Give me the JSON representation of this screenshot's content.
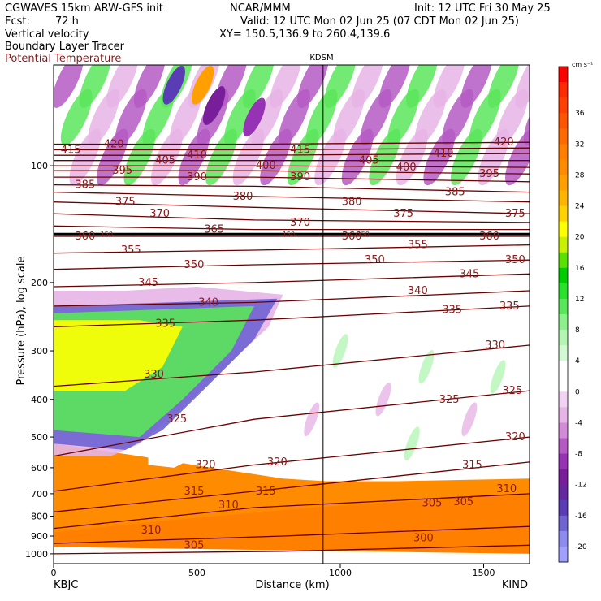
{
  "header": {
    "model": "CGWAVES 15km ARW-GFS init",
    "center": "NCAR/MMM",
    "init": "Init: 12 UTC Fri 30 May 25",
    "fcst_label": "Fcst:",
    "fcst_value": "72 h",
    "valid": "Valid: 12 UTC Mon 02 Jun 25 (07 CDT Mon 02 Jun 25)",
    "fields": [
      "Vertical velocity",
      "Boundary Layer Tracer",
      "Potential Temperature"
    ],
    "xy": "XY= 150.5,136.9 to 260.4,139.6"
  },
  "colors": {
    "theta_contour": "#6b0000",
    "theta_label": "#8b1a1a",
    "tropopause_line": "#000000",
    "pbl_tracer_fill": "#ff8c00"
  },
  "chart_data": {
    "type": "heatmap",
    "title": "",
    "station_marker": "KDSM",
    "station_marker_x_km": 940,
    "xlabel": "Distance (km)",
    "ylabel": "Pressure (hPa), log scale",
    "x_axis": {
      "ticks": [
        0,
        500,
        1000,
        1500
      ],
      "range": [
        0,
        1660
      ]
    },
    "x_end_labels": {
      "left": "KBJC",
      "right": "KIND"
    },
    "y_axis": {
      "scale": "log",
      "ticks": [
        100,
        200,
        300,
        400,
        500,
        600,
        700,
        800,
        900,
        1000
      ]
    },
    "colorbar": {
      "units": "cm s⁻¹",
      "tick_labels": [
        36,
        32,
        28,
        24,
        20,
        16,
        12,
        8,
        4,
        0,
        -4,
        -8,
        -12,
        -16,
        -20
      ],
      "levels": [
        {
          "value": 40,
          "color": "#ff0000"
        },
        {
          "value": 38,
          "color": "#ff2a00"
        },
        {
          "value": 36,
          "color": "#ff4000"
        },
        {
          "value": 34,
          "color": "#ff5500"
        },
        {
          "value": 32,
          "color": "#ff6a00"
        },
        {
          "value": 30,
          "color": "#ff7f00"
        },
        {
          "value": 28,
          "color": "#ff8c00"
        },
        {
          "value": 26,
          "color": "#ffa000"
        },
        {
          "value": 24,
          "color": "#ffb400"
        },
        {
          "value": 22,
          "color": "#ffd200"
        },
        {
          "value": 20,
          "color": "#ffff00"
        },
        {
          "value": 18,
          "color": "#c8f000"
        },
        {
          "value": 16,
          "color": "#5ae100"
        },
        {
          "value": 14,
          "color": "#00cd00"
        },
        {
          "value": 12,
          "color": "#2be02b"
        },
        {
          "value": 10,
          "color": "#5ae65a"
        },
        {
          "value": 8,
          "color": "#8cf08c"
        },
        {
          "value": 6,
          "color": "#b4f5b4"
        },
        {
          "value": 4,
          "color": "#d2fad2"
        },
        {
          "value": 2,
          "color": "#ffffff"
        },
        {
          "value": 0,
          "color": "#ffffff"
        },
        {
          "value": -2,
          "color": "#f2d2f2"
        },
        {
          "value": -4,
          "color": "#e6b4e6"
        },
        {
          "value": -6,
          "color": "#d28cd7"
        },
        {
          "value": -8,
          "color": "#b45ac3"
        },
        {
          "value": -10,
          "color": "#9632b4"
        },
        {
          "value": -12,
          "color": "#781e9b"
        },
        {
          "value": -14,
          "color": "#6428a0"
        },
        {
          "value": -16,
          "color": "#5a3cb4"
        },
        {
          "value": -18,
          "color": "#6e64d2"
        },
        {
          "value": -20,
          "color": "#8c8cf0"
        },
        {
          "value": -22,
          "color": "#a0a0ff"
        }
      ]
    },
    "tropopause_labels": [
      "150",
      "150",
      "150"
    ],
    "theta_contours": [
      {
        "value": 300,
        "points": [
          [
            0,
            1000
          ],
          [
            800,
            985
          ],
          [
            1660,
            950
          ]
        ]
      },
      {
        "value": 305,
        "points": [
          [
            0,
            940
          ],
          [
            800,
            900
          ],
          [
            1660,
            850
          ]
        ]
      },
      {
        "value": 310,
        "points": [
          [
            0,
            860
          ],
          [
            700,
            760
          ],
          [
            1660,
            700
          ]
        ]
      },
      {
        "value": 315,
        "points": [
          [
            0,
            780
          ],
          [
            700,
            690
          ],
          [
            1660,
            580
          ]
        ]
      },
      {
        "value": 320,
        "points": [
          [
            0,
            690
          ],
          [
            700,
            590
          ],
          [
            1660,
            500
          ]
        ]
      },
      {
        "value": 325,
        "points": [
          [
            0,
            560
          ],
          [
            700,
            450
          ],
          [
            1660,
            380
          ]
        ]
      },
      {
        "value": 330,
        "points": [
          [
            0,
            370
          ],
          [
            700,
            340
          ],
          [
            1660,
            290
          ]
        ]
      },
      {
        "value": 335,
        "points": [
          [
            0,
            260
          ],
          [
            700,
            250
          ],
          [
            1660,
            230
          ]
        ]
      },
      {
        "value": 340,
        "points": [
          [
            0,
            230
          ],
          [
            700,
            225
          ],
          [
            1660,
            210
          ]
        ]
      },
      {
        "value": 345,
        "points": [
          [
            0,
            205
          ],
          [
            700,
            200
          ],
          [
            1660,
            190
          ]
        ]
      },
      {
        "value": 350,
        "points": [
          [
            0,
            185
          ],
          [
            700,
            180
          ],
          [
            1660,
            175
          ]
        ]
      },
      {
        "value": 355,
        "points": [
          [
            0,
            168
          ],
          [
            700,
            165
          ],
          [
            1660,
            160
          ]
        ]
      },
      {
        "value": 360,
        "points": [
          [
            0,
            152
          ],
          [
            700,
            152
          ],
          [
            1660,
            152
          ]
        ]
      },
      {
        "value": 365,
        "points": [
          [
            0,
            143
          ],
          [
            700,
            146
          ],
          [
            1660,
            146
          ]
        ]
      },
      {
        "value": 370,
        "points": [
          [
            0,
            133
          ],
          [
            700,
            138
          ],
          [
            1660,
            140
          ]
        ]
      },
      {
        "value": 375,
        "points": [
          [
            0,
            124
          ],
          [
            700,
            128
          ],
          [
            1660,
            133
          ]
        ]
      },
      {
        "value": 380,
        "points": [
          [
            0,
            117
          ],
          [
            700,
            120
          ],
          [
            1660,
            124
          ]
        ]
      },
      {
        "value": 385,
        "points": [
          [
            0,
            112
          ],
          [
            700,
            113
          ],
          [
            1660,
            117
          ]
        ]
      },
      {
        "value": 390,
        "points": [
          [
            0,
            107
          ],
          [
            700,
            107
          ],
          [
            1660,
            110
          ]
        ]
      },
      {
        "value": 395,
        "points": [
          [
            0,
            103
          ],
          [
            700,
            103
          ],
          [
            1660,
            105
          ]
        ]
      },
      {
        "value": 400,
        "points": [
          [
            0,
            100
          ],
          [
            700,
            100
          ],
          [
            1660,
            101
          ]
        ]
      },
      {
        "value": 405,
        "points": [
          [
            0,
            97
          ],
          [
            700,
            97
          ],
          [
            1660,
            97
          ]
        ]
      },
      {
        "value": 410,
        "points": [
          [
            0,
            94
          ],
          [
            700,
            94
          ],
          [
            1660,
            93
          ]
        ]
      },
      {
        "value": 415,
        "points": [
          [
            0,
            91
          ],
          [
            700,
            91
          ],
          [
            1660,
            90
          ]
        ]
      },
      {
        "value": 420,
        "points": [
          [
            0,
            88
          ],
          [
            700,
            88
          ],
          [
            1660,
            87
          ]
        ]
      }
    ],
    "theta_contour_labels": [
      {
        "value": 415,
        "x": 60,
        "p": 91
      },
      {
        "value": 420,
        "x": 210,
        "p": 88
      },
      {
        "value": 405,
        "x": 390,
        "p": 97
      },
      {
        "value": 410,
        "x": 500,
        "p": 94
      },
      {
        "value": 400,
        "x": 740,
        "p": 100
      },
      {
        "value": 415,
        "x": 860,
        "p": 91
      },
      {
        "value": 405,
        "x": 1100,
        "p": 97
      },
      {
        "value": 400,
        "x": 1230,
        "p": 101
      },
      {
        "value": 410,
        "x": 1360,
        "p": 93
      },
      {
        "value": 420,
        "x": 1570,
        "p": 87
      },
      {
        "value": 395,
        "x": 240,
        "p": 103
      },
      {
        "value": 390,
        "x": 500,
        "p": 107
      },
      {
        "value": 390,
        "x": 860,
        "p": 107
      },
      {
        "value": 395,
        "x": 1520,
        "p": 105
      },
      {
        "value": 385,
        "x": 110,
        "p": 112
      },
      {
        "value": 375,
        "x": 250,
        "p": 124
      },
      {
        "value": 380,
        "x": 660,
        "p": 120
      },
      {
        "value": 380,
        "x": 1040,
        "p": 124
      },
      {
        "value": 385,
        "x": 1400,
        "p": 117
      },
      {
        "value": 375,
        "x": 1220,
        "p": 133
      },
      {
        "value": 375,
        "x": 1610,
        "p": 133
      },
      {
        "value": 370,
        "x": 370,
        "p": 133
      },
      {
        "value": 365,
        "x": 560,
        "p": 146
      },
      {
        "value": 370,
        "x": 860,
        "p": 140
      },
      {
        "value": 360,
        "x": 110,
        "p": 152
      },
      {
        "value": 360,
        "x": 1040,
        "p": 152
      },
      {
        "value": 360,
        "x": 1520,
        "p": 152
      },
      {
        "value": 355,
        "x": 270,
        "p": 165
      },
      {
        "value": 355,
        "x": 1270,
        "p": 160
      },
      {
        "value": 350,
        "x": 490,
        "p": 180
      },
      {
        "value": 350,
        "x": 1120,
        "p": 175
      },
      {
        "value": 350,
        "x": 1610,
        "p": 175
      },
      {
        "value": 345,
        "x": 330,
        "p": 200
      },
      {
        "value": 345,
        "x": 1450,
        "p": 190
      },
      {
        "value": 340,
        "x": 540,
        "p": 225
      },
      {
        "value": 340,
        "x": 1270,
        "p": 210
      },
      {
        "value": 335,
        "x": 390,
        "p": 255
      },
      {
        "value": 335,
        "x": 1390,
        "p": 235
      },
      {
        "value": 335,
        "x": 1590,
        "p": 230
      },
      {
        "value": 330,
        "x": 350,
        "p": 345
      },
      {
        "value": 330,
        "x": 1540,
        "p": 290
      },
      {
        "value": 325,
        "x": 430,
        "p": 450
      },
      {
        "value": 325,
        "x": 1380,
        "p": 400
      },
      {
        "value": 325,
        "x": 1600,
        "p": 380
      },
      {
        "value": 320,
        "x": 530,
        "p": 590
      },
      {
        "value": 320,
        "x": 780,
        "p": 580
      },
      {
        "value": 320,
        "x": 1610,
        "p": 500
      },
      {
        "value": 315,
        "x": 490,
        "p": 690
      },
      {
        "value": 315,
        "x": 740,
        "p": 690
      },
      {
        "value": 315,
        "x": 1460,
        "p": 590
      },
      {
        "value": 310,
        "x": 1580,
        "p": 680
      },
      {
        "value": 310,
        "x": 340,
        "p": 870
      },
      {
        "value": 310,
        "x": 610,
        "p": 750
      },
      {
        "value": 305,
        "x": 490,
        "p": 950
      },
      {
        "value": 305,
        "x": 1320,
        "p": 740
      },
      {
        "value": 305,
        "x": 1430,
        "p": 735
      },
      {
        "value": 300,
        "x": 1290,
        "p": 910
      }
    ]
  }
}
